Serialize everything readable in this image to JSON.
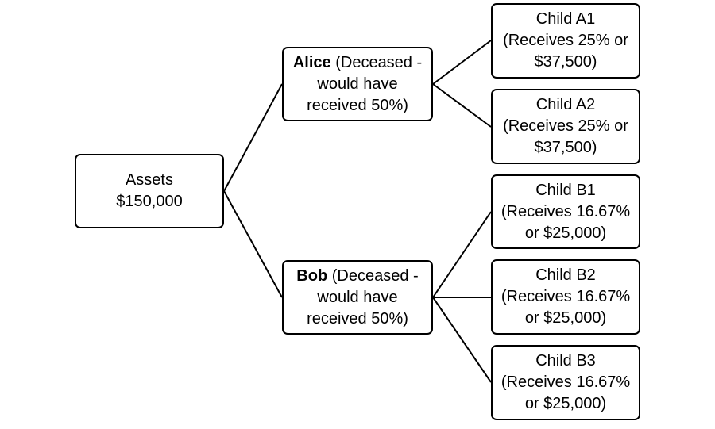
{
  "root": {
    "line1": "Assets",
    "line2": "$150,000"
  },
  "alice": {
    "name": "Alice",
    "line1_rest": " (Deceased -",
    "line2": "would have",
    "line3": "received 50%)"
  },
  "bob": {
    "name": "Bob",
    "line1_rest": " (Deceased -",
    "line2": "would have",
    "line3": "received 50%)"
  },
  "children": [
    {
      "line1": "Child A1",
      "line2": "(Receives 25% or",
      "line3": "$37,500)"
    },
    {
      "line1": "Child A2",
      "line2": "(Receives 25% or",
      "line3": "$37,500)"
    },
    {
      "line1": "Child B1",
      "line2": "(Receives 16.67%",
      "line3": "or $25,000)"
    },
    {
      "line1": "Child B2",
      "line2": "(Receives 16.67%",
      "line3": "or $25,000)"
    },
    {
      "line1": "Child B3",
      "line2": "(Receives 16.67%",
      "line3": "or $25,000)"
    }
  ]
}
